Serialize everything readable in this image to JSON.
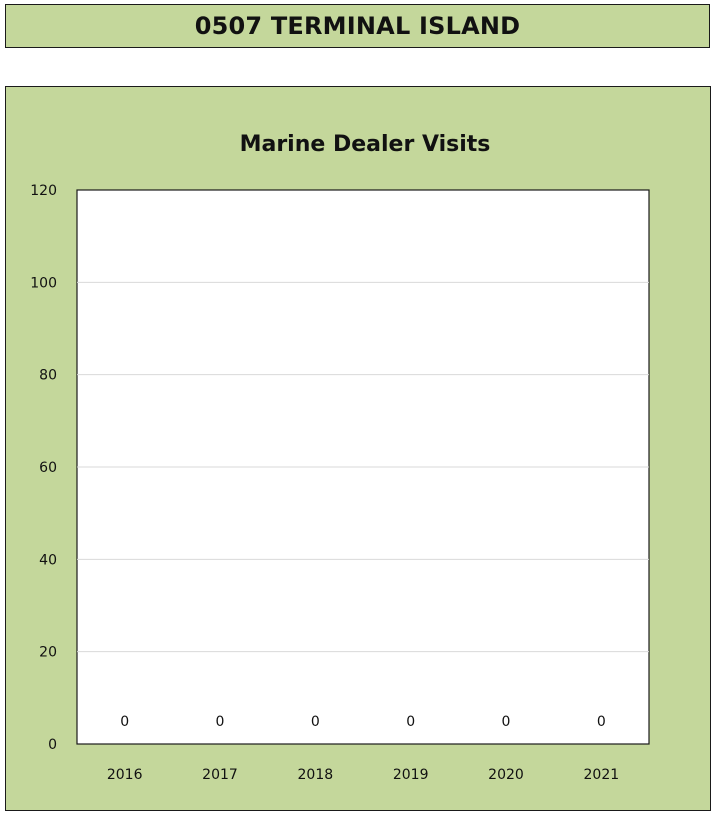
{
  "header": {
    "title": "0507 TERMINAL ISLAND"
  },
  "colors": {
    "panel_background": "#c4d79b",
    "plot_background": "#ffffff",
    "gridline": "#d9d9d9",
    "border": "#1a1a1a"
  },
  "chart_data": {
    "type": "bar",
    "title": "Marine Dealer Visits",
    "xlabel": "",
    "ylabel": "",
    "categories": [
      "2016",
      "2017",
      "2018",
      "2019",
      "2020",
      "2021"
    ],
    "values": [
      0,
      0,
      0,
      0,
      0,
      0
    ],
    "data_labels": [
      "0",
      "0",
      "0",
      "0",
      "0",
      "0"
    ],
    "ylim": [
      0,
      120
    ],
    "yticks": [
      0,
      20,
      40,
      60,
      80,
      100,
      120
    ],
    "ytick_labels": [
      "0",
      "20",
      "40",
      "60",
      "80",
      "100",
      "120"
    ],
    "grid": true,
    "legend": "none"
  }
}
